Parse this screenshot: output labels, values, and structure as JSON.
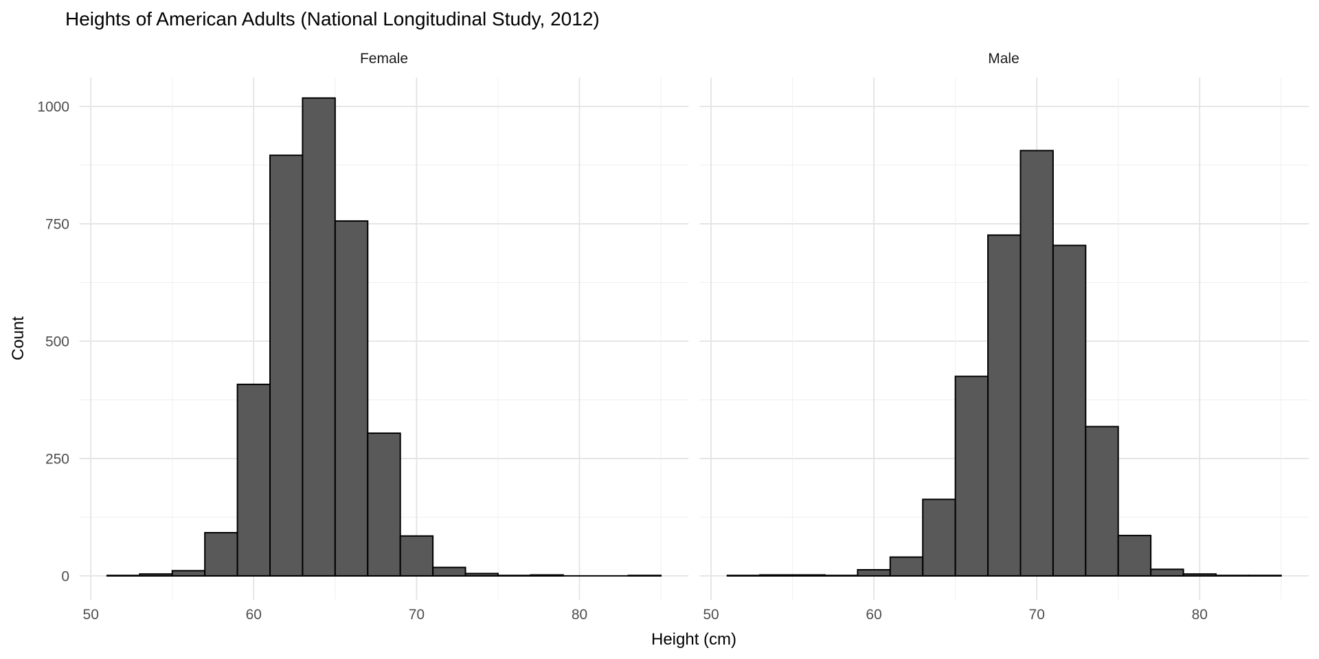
{
  "chart_data": {
    "type": "histogram",
    "title": "Heights of American Adults (National Longitudinal Study, 2012)",
    "xlabel": "Height (cm)",
    "ylabel": "Count",
    "legend": false,
    "grid": true,
    "facet_layout": "two side-by-side panels sharing x and y scales",
    "bin_width": 2,
    "bin_edges": [
      51,
      53,
      55,
      57,
      59,
      61,
      63,
      65,
      67,
      69,
      71,
      73,
      75,
      77,
      79,
      81,
      83,
      85
    ],
    "x_domain": [
      49.3,
      86.7
    ],
    "y_domain": [
      -51,
      1068
    ],
    "x_major_ticks": [
      50,
      60,
      70,
      80
    ],
    "x_gridlines": [
      50,
      55,
      60,
      65,
      70,
      75,
      80,
      85
    ],
    "y_major_ticks": [
      0,
      250,
      500,
      750,
      1000
    ],
    "y_gridlines": [
      0,
      125,
      250,
      375,
      500,
      625,
      750,
      875,
      1000
    ],
    "series": [
      {
        "name": "Female",
        "counts": [
          1,
          4,
          11,
          92,
          408,
          896,
          1018,
          756,
          304,
          85,
          18,
          5,
          1,
          2,
          0,
          0,
          1
        ]
      },
      {
        "name": "Male",
        "counts": [
          1,
          2,
          2,
          1,
          13,
          40,
          163,
          425,
          726,
          906,
          704,
          318,
          86,
          14,
          4,
          1,
          1
        ]
      }
    ]
  },
  "colors": {
    "bar_fill": "#595959",
    "bar_stroke": "#000000",
    "grid_major": "#E3E3E3",
    "grid_minor": "#EFEFEF",
    "tick_label": "#4D4D4D",
    "axis_title": "#000000",
    "facet_label": "#1A1A1A",
    "title": "#000000",
    "background": "#FFFFFF"
  }
}
